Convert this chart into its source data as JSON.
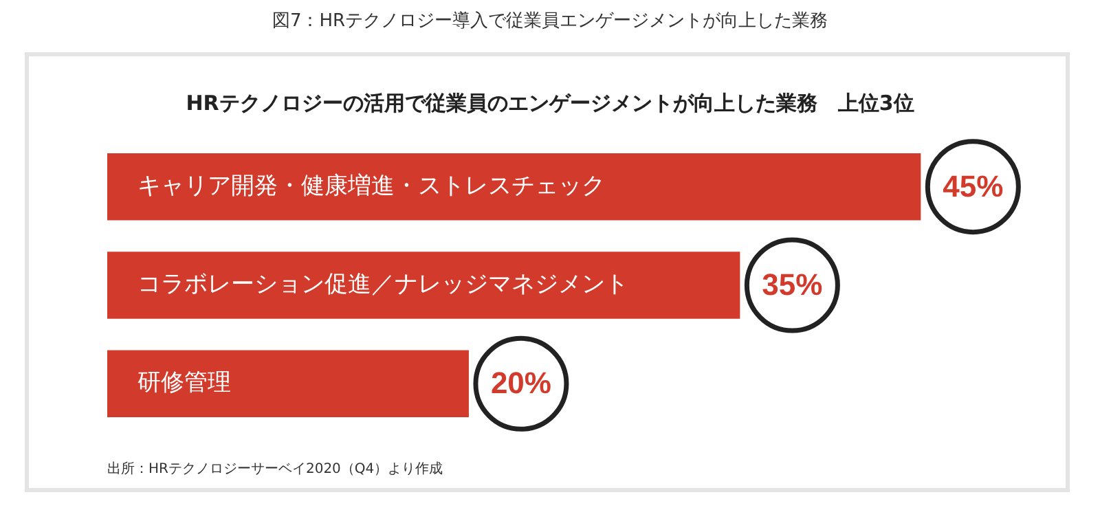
{
  "chart_data": {
    "type": "bar",
    "orientation": "horizontal",
    "title": "図7：HRテクノロジー導入で従業員エンゲージメントが向上した業務",
    "subtitle": "HRテクノロジーの活用で従業員のエンゲージメントが向上した業務　上位3位",
    "categories": [
      "キャリア開発・健康増進・ストレスチェック",
      "コラボレーション促進／ナレッジマネジメント",
      "研修管理"
    ],
    "values": [
      45,
      35,
      20
    ],
    "color": "#d23b2b",
    "value_labels": [
      "45%",
      "35%",
      "20%"
    ],
    "annotations": [
      "出所：HRテクノロジーサーベイ2020（Q4）より作成"
    ]
  }
}
